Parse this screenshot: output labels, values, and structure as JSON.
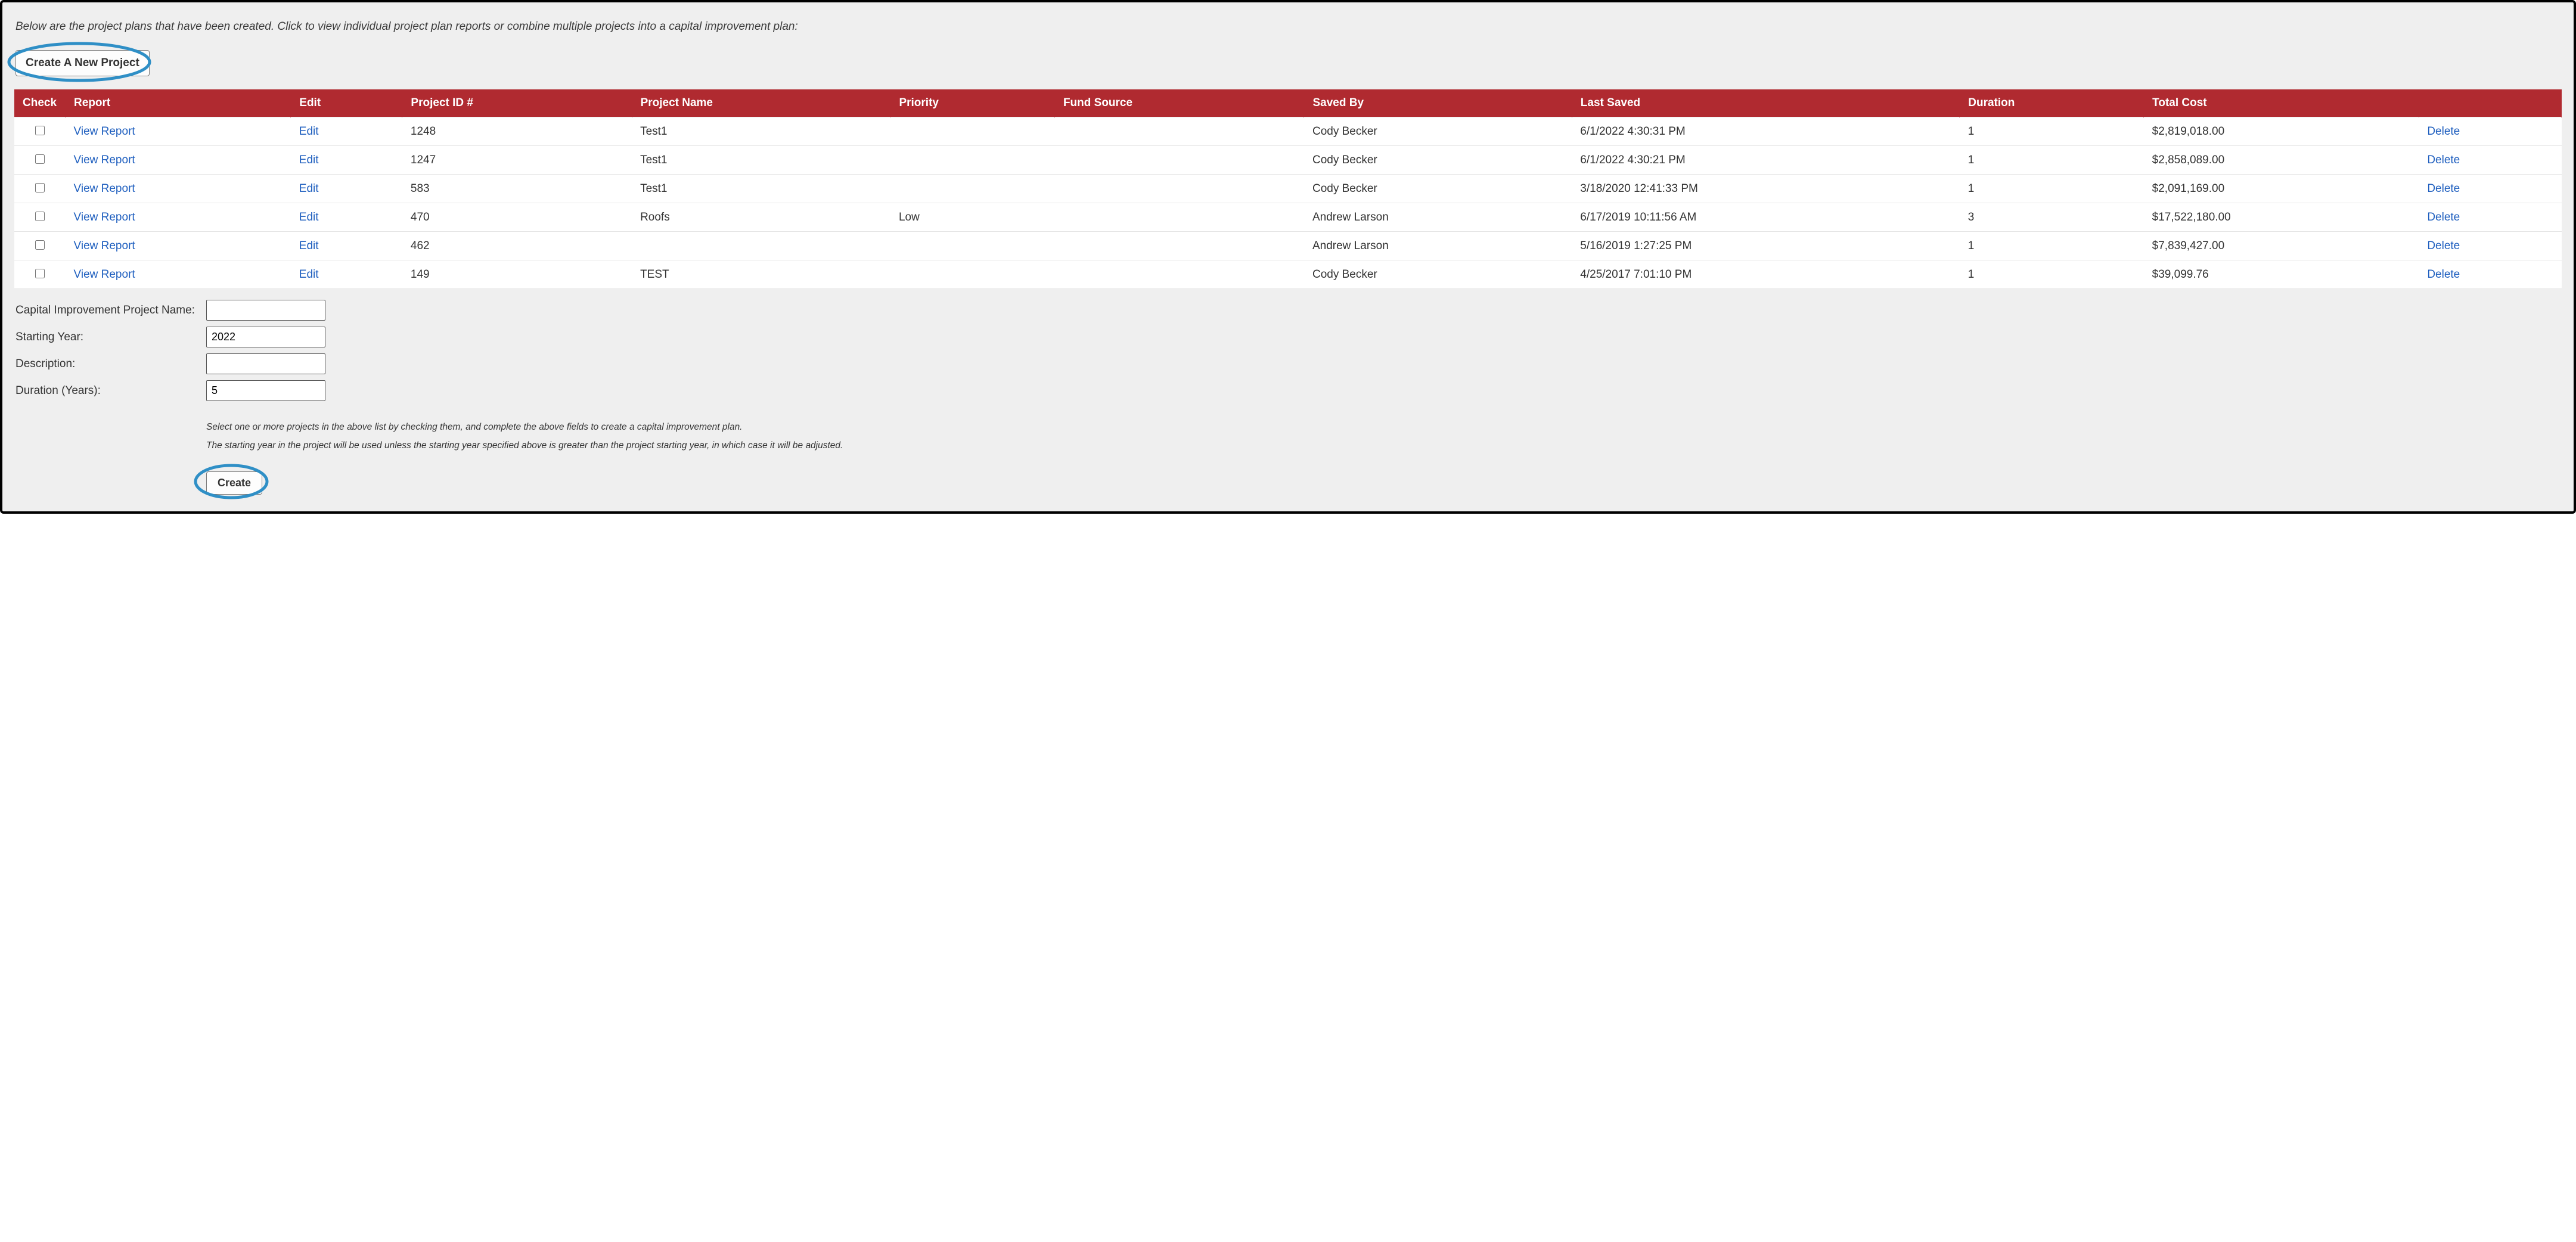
{
  "colors": {
    "header_bg": "#b02a30",
    "header_text": "#ffffff",
    "link": "#1f5fbf",
    "panel_bg": "#efefef",
    "border": "#000000",
    "ellipse": "#2f8fc6",
    "row_border": "#e5e5e5",
    "body_text": "#333333"
  },
  "intro_text": "Below are the project plans that have been created. Click to view individual project plan reports or combine multiple projects into a capital improvement plan:",
  "buttons": {
    "create_new_project": "Create A New Project",
    "create": "Create"
  },
  "table": {
    "headers": {
      "check": "Check",
      "report": "Report",
      "edit": "Edit",
      "project_id": "Project ID #",
      "project_name": "Project Name",
      "priority": "Priority",
      "fund_source": "Fund Source",
      "saved_by": "Saved By",
      "last_saved": "Last Saved",
      "duration": "Duration",
      "total_cost": "Total Cost",
      "actions": ""
    },
    "row_labels": {
      "view_report": "View Report",
      "edit": "Edit",
      "delete": "Delete"
    },
    "column_widths": {
      "check": "80px",
      "report": "130px",
      "edit": "62px",
      "project_id": "130px",
      "project_name": "150px",
      "priority": "100px",
      "fund_source": "140px",
      "saved_by": "150px",
      "last_saved": "220px",
      "duration": "100px",
      "total_cost": "160px",
      "actions": "80px"
    },
    "rows": [
      {
        "checked": false,
        "project_id": "1248",
        "project_name": "Test1",
        "priority": "",
        "fund_source": "",
        "saved_by": "Cody Becker",
        "last_saved": "6/1/2022 4:30:31 PM",
        "duration": "1",
        "total_cost": "$2,819,018.00"
      },
      {
        "checked": false,
        "project_id": "1247",
        "project_name": "Test1",
        "priority": "",
        "fund_source": "",
        "saved_by": "Cody Becker",
        "last_saved": "6/1/2022 4:30:21 PM",
        "duration": "1",
        "total_cost": "$2,858,089.00"
      },
      {
        "checked": false,
        "project_id": "583",
        "project_name": "Test1",
        "priority": "",
        "fund_source": "",
        "saved_by": "Cody Becker",
        "last_saved": "3/18/2020 12:41:33 PM",
        "duration": "1",
        "total_cost": "$2,091,169.00"
      },
      {
        "checked": false,
        "project_id": "470",
        "project_name": "Roofs",
        "priority": "Low",
        "fund_source": "",
        "saved_by": "Andrew Larson",
        "last_saved": "6/17/2019 10:11:56 AM",
        "duration": "3",
        "total_cost": "$17,522,180.00"
      },
      {
        "checked": false,
        "project_id": "462",
        "project_name": "",
        "priority": "",
        "fund_source": "",
        "saved_by": "Andrew Larson",
        "last_saved": "5/16/2019 1:27:25 PM",
        "duration": "1",
        "total_cost": "$7,839,427.00"
      },
      {
        "checked": false,
        "project_id": "149",
        "project_name": "TEST",
        "priority": "",
        "fund_source": "",
        "saved_by": "Cody Becker",
        "last_saved": "4/25/2017 7:01:10 PM",
        "duration": "1",
        "total_cost": "$39,099.76"
      }
    ]
  },
  "form": {
    "fields": {
      "cip_name": {
        "label": "Capital Improvement Project Name:",
        "value": ""
      },
      "start_year": {
        "label": "Starting Year:",
        "value": "2022"
      },
      "description": {
        "label": "Description:",
        "value": ""
      },
      "duration": {
        "label": "Duration (Years):",
        "value": "5"
      }
    },
    "help1": "Select one or more projects in the above list by checking them, and complete the above fields to create a capital improvement plan.",
    "help2": "The starting year in the project will be used unless the starting year specified above is greater than the project starting year, in which case it will be adjusted."
  }
}
